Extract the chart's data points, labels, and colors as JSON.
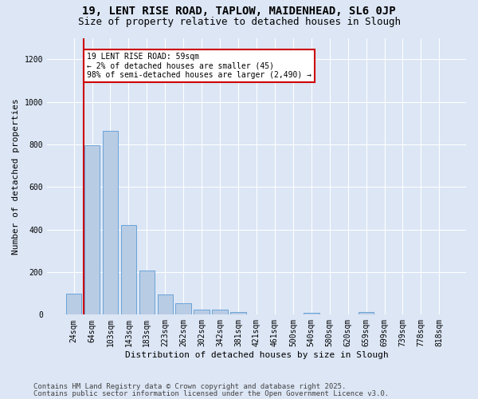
{
  "title_line1": "19, LENT RISE ROAD, TAPLOW, MAIDENHEAD, SL6 0JP",
  "title_line2": "Size of property relative to detached houses in Slough",
  "xlabel": "Distribution of detached houses by size in Slough",
  "ylabel": "Number of detached properties",
  "categories": [
    "24sqm",
    "64sqm",
    "103sqm",
    "143sqm",
    "183sqm",
    "223sqm",
    "262sqm",
    "302sqm",
    "342sqm",
    "381sqm",
    "421sqm",
    "461sqm",
    "500sqm",
    "540sqm",
    "580sqm",
    "620sqm",
    "659sqm",
    "699sqm",
    "739sqm",
    "778sqm",
    "818sqm"
  ],
  "values": [
    100,
    795,
    865,
    420,
    207,
    95,
    55,
    22,
    22,
    12,
    0,
    0,
    0,
    10,
    0,
    0,
    12,
    0,
    0,
    0,
    0
  ],
  "bar_color": "#b8cce4",
  "bar_edge_color": "#5b9bd5",
  "vline_color": "#cc0000",
  "vline_x_index": 0.55,
  "annotation_text": "19 LENT RISE ROAD: 59sqm\n← 2% of detached houses are smaller (45)\n98% of semi-detached houses are larger (2,490) →",
  "annotation_box_color": "#cc0000",
  "ylim": [
    0,
    1300
  ],
  "yticks": [
    0,
    200,
    400,
    600,
    800,
    1000,
    1200
  ],
  "background_color": "#dce6f5",
  "plot_bg_color": "#dce6f5",
  "footer_line1": "Contains HM Land Registry data © Crown copyright and database right 2025.",
  "footer_line2": "Contains public sector information licensed under the Open Government Licence v3.0.",
  "title_fontsize": 10,
  "subtitle_fontsize": 9,
  "axis_label_fontsize": 8,
  "tick_fontsize": 7,
  "annotation_fontsize": 7,
  "footer_fontsize": 6.5
}
